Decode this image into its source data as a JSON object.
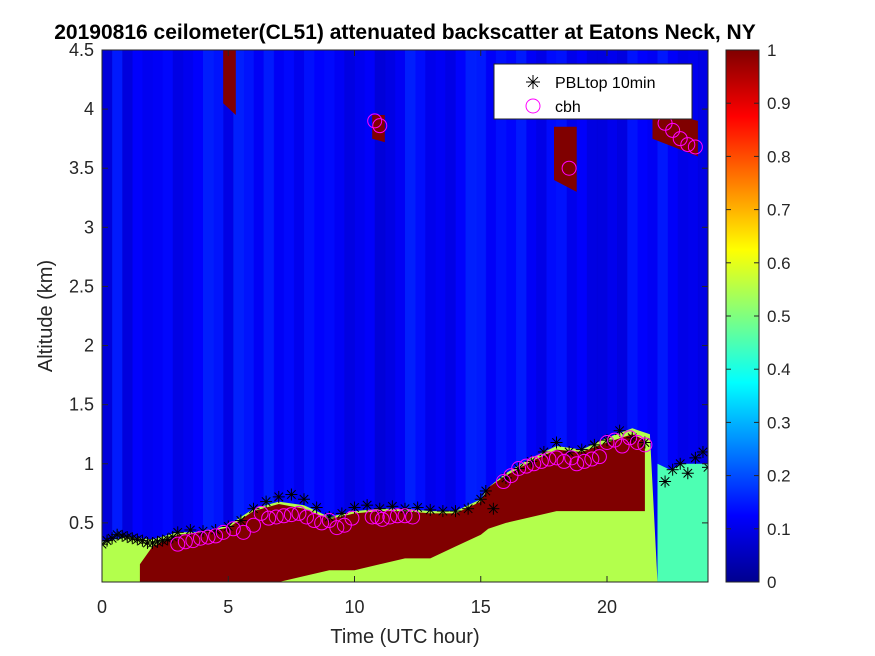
{
  "chart_data": {
    "type": "heatmap",
    "title": "20190816 ceilometer(CL51) attenuated backscatter at Eatons Neck, NY",
    "xlabel": "Time (UTC hour)",
    "ylabel": "Altitude (km)",
    "xlim": [
      0,
      24
    ],
    "ylim": [
      0,
      4.5
    ],
    "xticks": [
      0,
      5,
      10,
      15,
      20
    ],
    "xtick_labels": [
      "0",
      "5",
      "10",
      "15",
      "20"
    ],
    "yticks": [
      0.5,
      1,
      1.5,
      2,
      2.5,
      3,
      3.5,
      4,
      4.5
    ],
    "ytick_labels": [
      "0.5",
      "1",
      "1.5",
      "2",
      "2.5",
      "3",
      "3.5",
      "4",
      "4.5"
    ],
    "colorbar": {
      "colormap": "jet",
      "range": [
        0,
        1
      ],
      "ticks": [
        0,
        0.1,
        0.2,
        0.3,
        0.4,
        0.5,
        0.6,
        0.7,
        0.8,
        0.9,
        1
      ],
      "tick_labels": [
        "0",
        "0.1",
        "0.2",
        "0.3",
        "0.4",
        "0.5",
        "0.6",
        "0.7",
        "0.8",
        "0.9",
        "1"
      ]
    },
    "legend": {
      "placement": "top-right",
      "entries": [
        {
          "label": "PBLtop 10min",
          "marker": "asterisk",
          "color": "#000000"
        },
        {
          "label": "cbh",
          "marker": "circle",
          "color": "#ff00ff"
        }
      ]
    },
    "background_value": 0.12,
    "layers": [
      {
        "t": [
          0,
          1,
          2,
          3,
          4,
          5,
          6,
          7,
          8,
          9,
          10,
          11,
          12,
          13,
          14,
          15,
          15.3,
          16,
          17,
          18,
          19,
          20,
          21,
          21.7,
          22,
          23,
          24
        ],
        "top": [
          0.34,
          0.38,
          0.36,
          0.42,
          0.42,
          0.48,
          0.62,
          0.68,
          0.65,
          0.55,
          0.6,
          0.62,
          0.62,
          0.6,
          0.6,
          0.7,
          0.8,
          0.92,
          1.05,
          1.15,
          1.12,
          1.22,
          1.3,
          1.25,
          0.0,
          0.0,
          0.0
        ],
        "bottom": [
          0,
          0,
          0,
          0,
          0,
          0,
          0,
          0,
          0,
          0,
          0,
          0,
          0,
          0,
          0,
          0,
          0,
          0,
          0,
          0,
          0,
          0,
          0,
          0,
          0,
          0,
          0
        ],
        "value": 0.55
      },
      {
        "t": [
          1.5,
          2,
          3,
          4,
          5,
          6,
          7,
          8,
          9,
          10,
          11,
          12,
          13,
          14,
          15,
          15.3,
          16,
          17,
          18,
          19,
          20,
          21,
          21.5
        ],
        "top": [
          0.15,
          0.3,
          0.4,
          0.42,
          0.46,
          0.6,
          0.66,
          0.62,
          0.53,
          0.58,
          0.6,
          0.6,
          0.58,
          0.58,
          0.68,
          0.8,
          0.9,
          1.02,
          1.12,
          1.1,
          1.18,
          1.25,
          1.2
        ],
        "bottom": [
          0,
          0,
          0,
          0,
          0,
          0,
          0,
          0.05,
          0.1,
          0.1,
          0.15,
          0.2,
          0.2,
          0.3,
          0.4,
          0.45,
          0.5,
          0.55,
          0.6,
          0.6,
          0.6,
          0.6,
          0.6
        ],
        "value": 1.0
      },
      {
        "t": [
          22,
          22.5,
          23,
          24
        ],
        "top": [
          1.0,
          0.95,
          1.0,
          1.0
        ],
        "bottom": [
          0,
          0,
          0,
          0
        ],
        "value": 0.45
      },
      {
        "t": [
          4.8,
          5.3
        ],
        "top": [
          4.5,
          4.5
        ],
        "bottom": [
          4.05,
          3.95
        ],
        "value": 1.0
      },
      {
        "t": [
          10.7,
          11.2
        ],
        "top": [
          3.95,
          3.95
        ],
        "bottom": [
          3.75,
          3.72
        ],
        "value": 1.0
      },
      {
        "t": [
          17.9,
          18.8
        ],
        "top": [
          3.85,
          3.85
        ],
        "bottom": [
          3.4,
          3.3
        ],
        "value": 1.0
      },
      {
        "t": [
          21.8,
          23.6
        ],
        "top": [
          4.0,
          3.9
        ],
        "bottom": [
          3.75,
          3.6
        ],
        "value": 1.0
      }
    ],
    "series": [
      {
        "name": "PBLtop 10min",
        "x": [
          0,
          0.2,
          0.4,
          0.6,
          0.8,
          1.0,
          1.2,
          1.4,
          1.6,
          1.8,
          2.0,
          2.2,
          2.4,
          2.6,
          2.8,
          3.0,
          3.5,
          4.0,
          4.5,
          5.0,
          5.5,
          6.0,
          6.5,
          7.0,
          7.5,
          8.0,
          8.5,
          9.0,
          9.5,
          10.0,
          10.5,
          11.0,
          11.5,
          12.0,
          12.5,
          13.0,
          13.5,
          14.0,
          14.5,
          15.0,
          15.2,
          15.5,
          16.0,
          16.5,
          17.0,
          17.5,
          18.0,
          18.5,
          19.0,
          19.5,
          20.0,
          20.5,
          21.0,
          21.5,
          22.3,
          22.6,
          22.9,
          23.2,
          23.5,
          23.8,
          24.0
        ],
        "y": [
          0.32,
          0.35,
          0.37,
          0.4,
          0.39,
          0.38,
          0.37,
          0.36,
          0.35,
          0.33,
          0.33,
          0.34,
          0.35,
          0.36,
          0.38,
          0.42,
          0.44,
          0.43,
          0.44,
          0.47,
          0.52,
          0.62,
          0.68,
          0.72,
          0.74,
          0.7,
          0.63,
          0.55,
          0.58,
          0.63,
          0.65,
          0.62,
          0.64,
          0.62,
          0.63,
          0.61,
          0.6,
          0.6,
          0.62,
          0.7,
          0.77,
          0.62,
          0.88,
          0.96,
          1.02,
          1.1,
          1.18,
          1.1,
          1.12,
          1.16,
          1.2,
          1.28,
          1.22,
          1.18,
          0.85,
          0.95,
          1.0,
          0.92,
          1.05,
          1.1,
          0.97
        ]
      },
      {
        "name": "cbh",
        "x": [
          3.0,
          3.3,
          3.6,
          3.9,
          4.2,
          4.5,
          4.8,
          5.2,
          5.6,
          6.0,
          6.3,
          6.6,
          6.9,
          7.2,
          7.5,
          7.8,
          8.1,
          8.4,
          8.7,
          9.0,
          9.3,
          9.6,
          9.9,
          10.7,
          10.9,
          11.1,
          11.4,
          11.7,
          12.0,
          12.3,
          15.9,
          16.2,
          16.5,
          16.8,
          17.1,
          17.4,
          17.7,
          18.0,
          18.3,
          18.6,
          18.8,
          19.1,
          19.4,
          19.7,
          20.0,
          20.3,
          20.6,
          20.9,
          21.2,
          21.5,
          18.5,
          10.8,
          11.0,
          22.3,
          22.6,
          22.9,
          23.2,
          23.5
        ],
        "y": [
          0.32,
          0.34,
          0.35,
          0.37,
          0.38,
          0.39,
          0.42,
          0.45,
          0.42,
          0.48,
          0.58,
          0.54,
          0.55,
          0.56,
          0.57,
          0.58,
          0.55,
          0.52,
          0.5,
          0.52,
          0.46,
          0.48,
          0.54,
          0.55,
          0.55,
          0.53,
          0.55,
          0.56,
          0.56,
          0.55,
          0.85,
          0.9,
          0.96,
          0.98,
          1.0,
          1.02,
          1.04,
          1.05,
          1.02,
          1.05,
          1.0,
          1.02,
          1.04,
          1.06,
          1.18,
          1.2,
          1.15,
          1.22,
          1.18,
          1.16,
          3.5,
          3.9,
          3.86,
          3.88,
          3.82,
          3.75,
          3.7,
          3.68
        ]
      }
    ]
  }
}
